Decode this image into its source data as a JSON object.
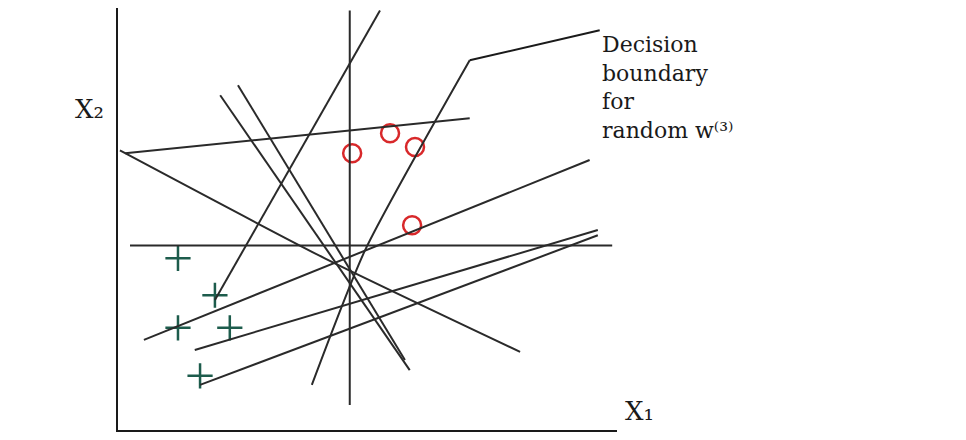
{
  "chart_data": {
    "type": "scatter",
    "x_label": "X₁",
    "y_label": "X₂",
    "xlim": [
      0,
      104
    ],
    "ylim": [
      0,
      88
    ],
    "tick_labels": false,
    "grid": false,
    "series": [
      {
        "type": "scatter",
        "marker": "cross",
        "color": "#1d5c4c",
        "x": [
          12.5,
          20.2,
          12.5,
          23.3,
          17.1
        ],
        "y": [
          35.8,
          28.1,
          21.3,
          21.3,
          11.3
        ]
      },
      {
        "type": "scatter",
        "marker": "circle-open",
        "color": "#d8282a",
        "x": [
          48.8,
          56.7,
          61.9,
          61.3
        ],
        "y": [
          57.7,
          61.9,
          59.0,
          42.7
        ]
      },
      {
        "type": "line",
        "color": "#2a2a2a",
        "x": [
          1.5,
          73.3,
          null,
          2.5,
          103,
          null,
          0.4,
          43.1,
          83.8,
          null,
          48.3,
          48.3,
          null,
          21.3,
          60.8,
          null,
          25,
          59.8,
          null,
          20.2,
          54.6,
          null,
          5.4,
          98.3,
          null,
          16,
          100,
          null,
          17.1,
          100
        ],
        "y": [
          57.7,
          65,
          null,
          38.5,
          38.5,
          null,
          58.3,
          35.8,
          16.3,
          null,
          5.2,
          87.5,
          null,
          69.8,
          12.5,
          null,
          71.9,
          14.6,
          null,
          27.1,
          87.5,
          null,
          18.8,
          56.3,
          null,
          16.7,
          41.7,
          null,
          9.4,
          40.6
        ]
      },
      {
        "type": "line",
        "color": "#2a2a2a",
        "x": [
          40.4,
          51.5,
          73.3
        ],
        "y": [
          9.4,
          37.5,
          77.1
        ]
      }
    ],
    "annotations": [
      {
        "text": [
          "Decision",
          "boundary",
          "for",
          "random w⁽³⁾"
        ],
        "x": 73.3,
        "y": 77.1
      }
    ]
  }
}
